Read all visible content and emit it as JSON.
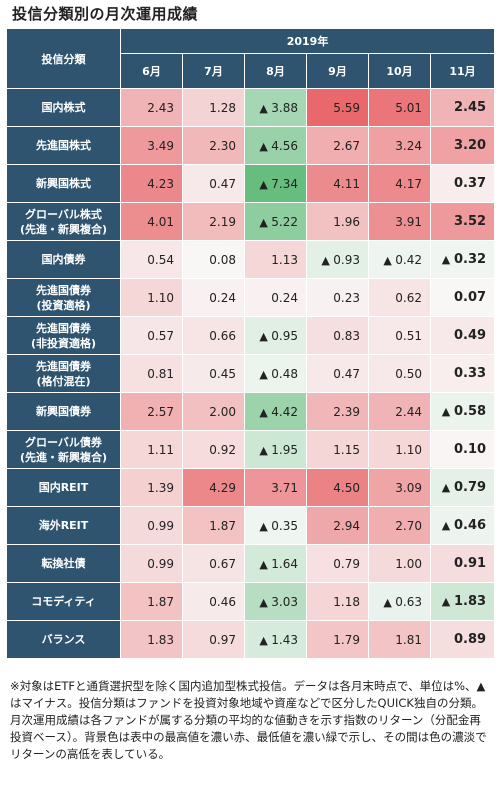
{
  "title": "投信分類別の月次運用成績",
  "corner_label": "投信分類",
  "year_label": "2019年",
  "chart_data": {
    "type": "table",
    "columns": [
      "6月",
      "7月",
      "8月",
      "9月",
      "10月",
      "11月"
    ],
    "rows": [
      {
        "label": [
          "国内株式"
        ],
        "values": [
          2.43,
          1.28,
          -3.88,
          5.59,
          5.01,
          2.45
        ]
      },
      {
        "label": [
          "先進国株式"
        ],
        "values": [
          3.49,
          2.3,
          -4.56,
          2.67,
          3.24,
          3.2
        ]
      },
      {
        "label": [
          "新興国株式"
        ],
        "values": [
          4.23,
          0.47,
          -7.34,
          4.11,
          4.17,
          0.37
        ]
      },
      {
        "label": [
          "グローバル株式",
          "(先進・新興複合)"
        ],
        "values": [
          4.01,
          2.19,
          -5.22,
          1.96,
          3.91,
          3.52
        ]
      },
      {
        "label": [
          "国内債券"
        ],
        "values": [
          0.54,
          0.08,
          1.13,
          -0.93,
          -0.42,
          -0.32
        ]
      },
      {
        "label": [
          "先進国債券",
          "(投資適格)"
        ],
        "values": [
          1.1,
          0.24,
          0.24,
          0.23,
          0.62,
          0.07
        ]
      },
      {
        "label": [
          "先進国債券",
          "(非投資適格)"
        ],
        "values": [
          0.57,
          0.66,
          -0.95,
          0.83,
          0.51,
          0.49
        ]
      },
      {
        "label": [
          "先進国債券",
          "(格付混在)"
        ],
        "values": [
          0.81,
          0.45,
          -0.48,
          0.47,
          0.5,
          0.33
        ]
      },
      {
        "label": [
          "新興国債券"
        ],
        "values": [
          2.57,
          2.0,
          -4.42,
          2.39,
          2.44,
          -0.58
        ]
      },
      {
        "label": [
          "グローバル債券",
          "(先進・新興複合)"
        ],
        "values": [
          1.11,
          0.92,
          -1.95,
          1.15,
          1.1,
          0.1
        ]
      },
      {
        "label": [
          "国内REIT"
        ],
        "values": [
          1.39,
          4.29,
          3.71,
          4.5,
          3.09,
          -0.79
        ]
      },
      {
        "label": [
          "海外REIT"
        ],
        "values": [
          0.99,
          1.87,
          -0.35,
          2.94,
          2.7,
          -0.46
        ]
      },
      {
        "label": [
          "転換社債"
        ],
        "values": [
          0.99,
          0.67,
          -1.64,
          0.79,
          1.0,
          0.91
        ]
      },
      {
        "label": [
          "コモディティ"
        ],
        "values": [
          1.87,
          0.46,
          -3.03,
          1.18,
          -0.63,
          -1.83
        ]
      },
      {
        "label": [
          "バランス"
        ],
        "values": [
          1.83,
          0.97,
          -1.43,
          1.79,
          1.81,
          0.89
        ]
      }
    ]
  },
  "note": "※対象はETFと通貨選択型を除く国内追加型株式投信。データは各月末時点で、単位は%、▲はマイナス。投信分類はファンドを投資対象地域や資産などで区分したQUICK独自の分類。月次運用成績は各ファンドが属する分類の平均的な値動きを示す指数のリターン（分配金再投資ベース）。背景色は表中の最高値を濃い赤、最低値を濃い緑で示し、その間は色の濃淡でリターンの高低を表している。",
  "colors": {
    "header": "#2f5470",
    "max_red": "#e8686c",
    "min_green": "#66bd7e",
    "neutral": "#f9f9f9"
  }
}
